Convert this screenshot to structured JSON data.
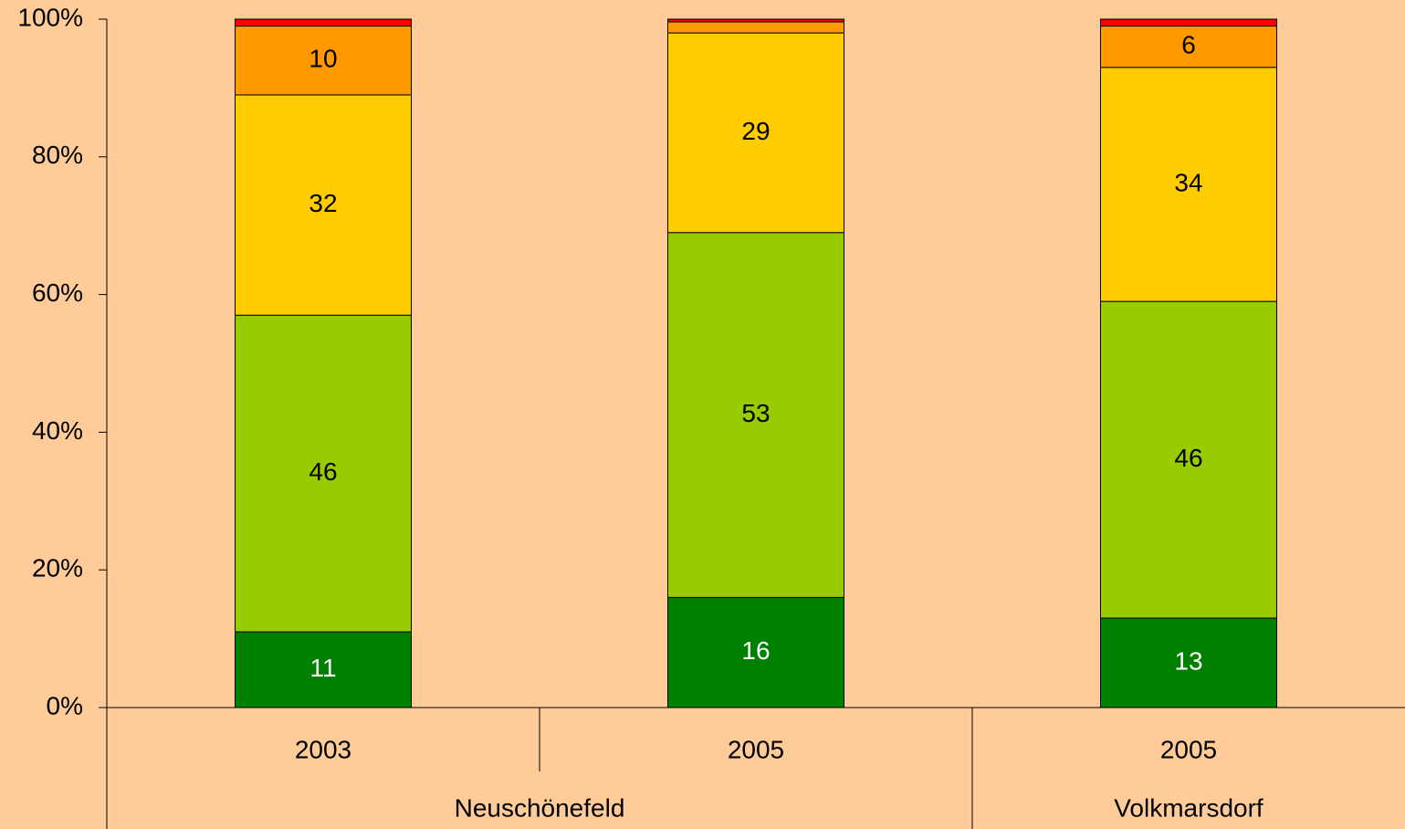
{
  "chart_data": {
    "type": "stacked_bar",
    "categories": [
      "2003",
      "2005",
      "2005"
    ],
    "groups": [
      {
        "name": "Neuschönefeld",
        "span": 2
      },
      {
        "name": "Volkmarsdorf",
        "span": 1
      }
    ],
    "series": [
      {
        "color": "#008000",
        "label_color": "#ffffff",
        "values": [
          11,
          16,
          13
        ],
        "show_labels": [
          true,
          true,
          true
        ]
      },
      {
        "color": "#99cc00",
        "label_color": "#000000",
        "values": [
          46,
          53,
          46
        ],
        "show_labels": [
          true,
          true,
          true
        ]
      },
      {
        "color": "#ffcc00",
        "label_color": "#000000",
        "values": [
          32,
          29,
          34
        ],
        "show_labels": [
          true,
          true,
          true
        ]
      },
      {
        "color": "#ff9900",
        "label_color": "#000000",
        "values": [
          10,
          1.6,
          6
        ],
        "show_labels": [
          true,
          false,
          true
        ]
      },
      {
        "color": "#ff0000",
        "label_color": "#000000",
        "values": [
          1,
          0.4,
          1
        ],
        "show_labels": [
          false,
          false,
          false
        ]
      }
    ],
    "ylim": [
      0,
      100
    ],
    "yticks": [
      {
        "value": 0,
        "label": "0%"
      },
      {
        "value": 20,
        "label": "20%"
      },
      {
        "value": 40,
        "label": "40%"
      },
      {
        "value": 60,
        "label": "60%"
      },
      {
        "value": 80,
        "label": "80%"
      },
      {
        "value": 100,
        "label": "100%"
      }
    ]
  }
}
